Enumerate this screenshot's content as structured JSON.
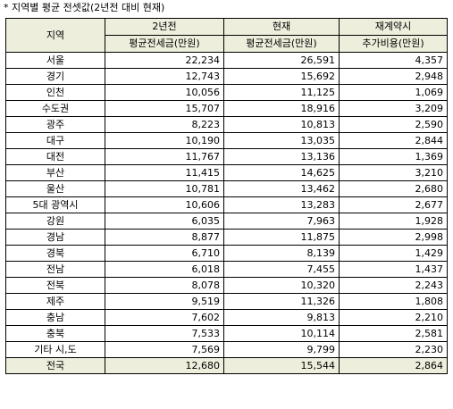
{
  "caption": "* 지역별 평균 전셋값(2년전 대비 현재)",
  "header": {
    "region": "지역",
    "col1_top": "2년전",
    "col1_bottom": "평균전세금(만원)",
    "col2_top": "현재",
    "col2_bottom": "평균전세금(만원)",
    "col3_top": "재계약시",
    "col3_bottom": "추가비용(만원)"
  },
  "rows": [
    {
      "region": "서울",
      "before": "22,234",
      "now": "26,591",
      "extra": "4,357"
    },
    {
      "region": "경기",
      "before": "12,743",
      "now": "15,692",
      "extra": "2,948"
    },
    {
      "region": "인천",
      "before": "10,056",
      "now": "11,125",
      "extra": "1,069"
    },
    {
      "region": "수도권",
      "before": "15,707",
      "now": "18,916",
      "extra": "3,209"
    },
    {
      "region": "광주",
      "before": "8,223",
      "now": "10,813",
      "extra": "2,590"
    },
    {
      "region": "대구",
      "before": "10,190",
      "now": "13,035",
      "extra": "2,844"
    },
    {
      "region": "대전",
      "before": "11,767",
      "now": "13,136",
      "extra": "1,369"
    },
    {
      "region": "부산",
      "before": "11,415",
      "now": "14,625",
      "extra": "3,210"
    },
    {
      "region": "울산",
      "before": "10,781",
      "now": "13,462",
      "extra": "2,680"
    },
    {
      "region": "5대 광역시",
      "before": "10,606",
      "now": "13,283",
      "extra": "2,677"
    },
    {
      "region": "강원",
      "before": "6,035",
      "now": "7,963",
      "extra": "1,928"
    },
    {
      "region": "경남",
      "before": "8,877",
      "now": "11,875",
      "extra": "2,998"
    },
    {
      "region": "경북",
      "before": "6,710",
      "now": "8,139",
      "extra": "1,429"
    },
    {
      "region": "전남",
      "before": "6,018",
      "now": "7,455",
      "extra": "1,437"
    },
    {
      "region": "전북",
      "before": "8,078",
      "now": "10,320",
      "extra": "2,243"
    },
    {
      "region": "제주",
      "before": "9,519",
      "now": "11,326",
      "extra": "1,808"
    },
    {
      "region": "충남",
      "before": "7,602",
      "now": "9,813",
      "extra": "2,210"
    },
    {
      "region": "충북",
      "before": "7,533",
      "now": "10,114",
      "extra": "2,581"
    },
    {
      "region": "기타 시,도",
      "before": "7,569",
      "now": "9,799",
      "extra": "2,230"
    }
  ],
  "total": {
    "region": "전국",
    "before": "12,680",
    "now": "15,544",
    "extra": "2,864"
  }
}
